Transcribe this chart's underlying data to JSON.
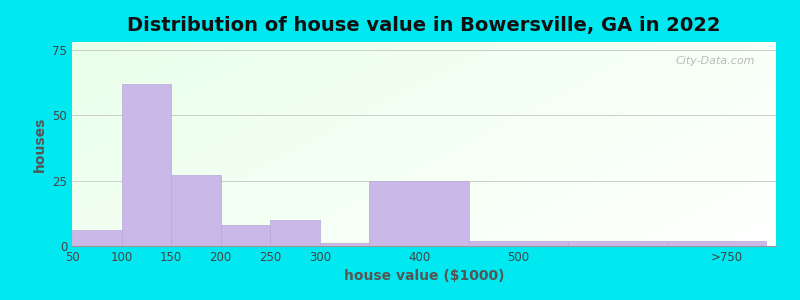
{
  "title": "Distribution of house value in Bowersville, GA in 2022",
  "xlabel": "house value ($1000)",
  "ylabel": "houses",
  "bar_lefts": [
    50,
    100,
    150,
    200,
    250,
    300,
    350,
    450,
    550,
    650
  ],
  "bar_heights": [
    6,
    62,
    27,
    8,
    10,
    1,
    25,
    2,
    2,
    2
  ],
  "bar_widths": [
    50,
    50,
    50,
    50,
    50,
    50,
    100,
    100,
    100,
    100
  ],
  "bar_color": "#c9b8e8",
  "bar_edge_color": "#b8a8d8",
  "xlim_left": 50,
  "xlim_right": 760,
  "ylim": [
    0,
    78
  ],
  "yticks": [
    0,
    25,
    50,
    75
  ],
  "xtick_positions": [
    50,
    100,
    150,
    200,
    250,
    300,
    400,
    500,
    710
  ],
  "xtick_labels": [
    "50",
    "100",
    "150",
    "200",
    "250",
    "300",
    "400",
    "500",
    ">750"
  ],
  "outer_bg": "#00e8f0",
  "title_fontsize": 14,
  "axis_label_fontsize": 10,
  "watermark_text": "City-Data.com"
}
